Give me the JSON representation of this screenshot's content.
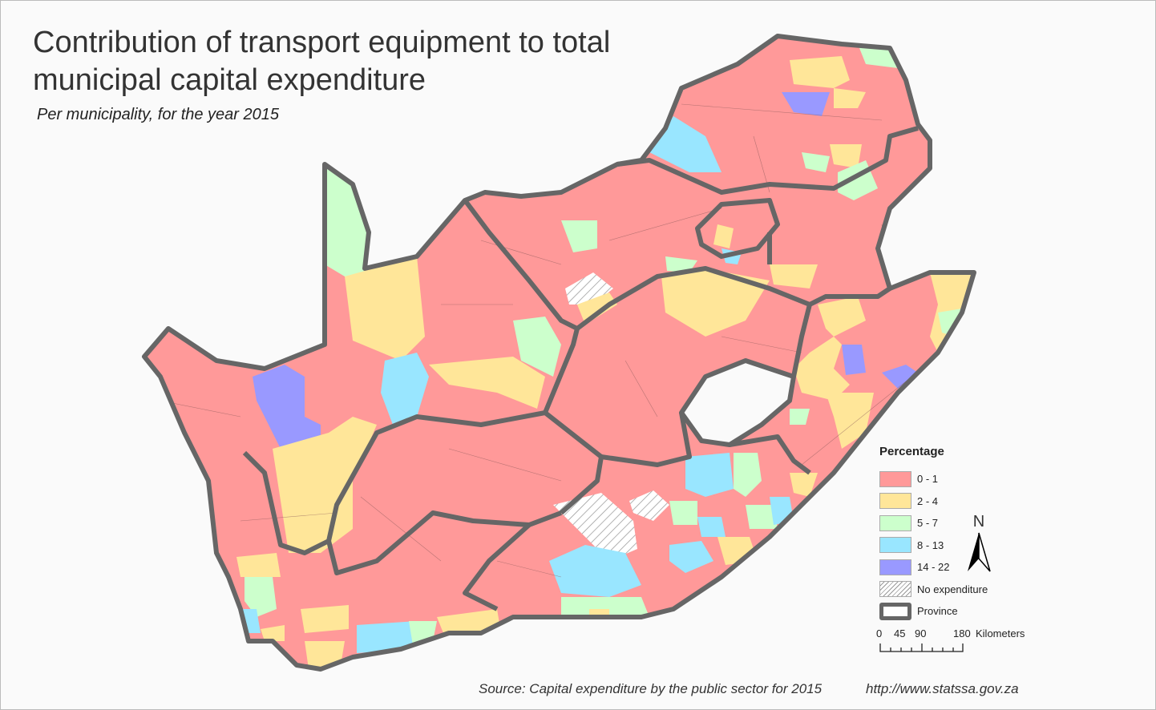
{
  "title": "Contribution of transport equipment to total municipal capital expenditure",
  "subtitle": "Per municipality, for the year 2015",
  "source": "Source: Capital expenditure by the public sector for 2015",
  "url": "http://www.statssa.gov.za",
  "legend": {
    "title": "Percentage",
    "items": [
      {
        "label": "0 - 1",
        "color": "#ff9999"
      },
      {
        "label": "2 - 4",
        "color": "#ffe699"
      },
      {
        "label": "5 - 7",
        "color": "#ccffcc"
      },
      {
        "label": "8 - 13",
        "color": "#99e6ff"
      },
      {
        "label": "14 - 22",
        "color": "#9999ff"
      }
    ],
    "no_expenditure": "No expenditure",
    "province": "Province"
  },
  "scale_bar": {
    "labels": [
      "0",
      "45",
      "90",
      "180"
    ],
    "unit": "Kilometers"
  },
  "north_arrow": "N",
  "colors": {
    "province_border": "#666666",
    "municipal_border": "#8a5a5a"
  }
}
